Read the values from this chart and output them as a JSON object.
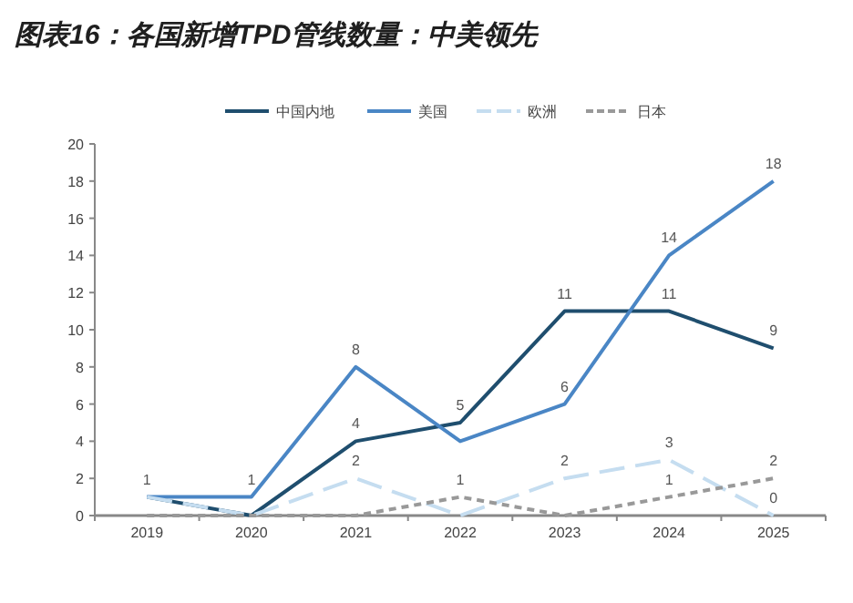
{
  "chart_data": {
    "type": "line",
    "title": "图表16：各国新增TPD管线数量：中美领先",
    "categories": [
      "2019",
      "2020",
      "2021",
      "2022",
      "2023",
      "2024",
      "2025"
    ],
    "series": [
      {
        "name": "中国内地",
        "color": "#1f4e6e",
        "line_style": "solid",
        "values": [
          1,
          0,
          4,
          5,
          11,
          11,
          9
        ],
        "value_labels": [
          "1",
          null,
          "4",
          "5",
          "11",
          "11",
          "9"
        ]
      },
      {
        "name": "美国",
        "color": "#4a86c5",
        "line_style": "solid",
        "values": [
          1,
          1,
          8,
          4,
          6,
          14,
          18
        ],
        "value_labels": [
          null,
          "1",
          "8",
          null,
          "6",
          "14",
          "18"
        ]
      },
      {
        "name": "欧洲",
        "color": "#c5ddf0",
        "line_style": "dashed",
        "values": [
          1,
          0,
          2,
          0,
          2,
          3,
          0
        ],
        "value_labels": [
          null,
          null,
          "2",
          null,
          "2",
          "3",
          "0"
        ]
      },
      {
        "name": "日本",
        "color": "#999999",
        "line_style": "dotted",
        "values": [
          0,
          0,
          0,
          1,
          0,
          1,
          2
        ],
        "value_labels": [
          null,
          null,
          null,
          "1",
          null,
          "1",
          "2"
        ]
      }
    ],
    "ylim": [
      0,
      20
    ],
    "yticks": [
      0,
      2,
      4,
      6,
      8,
      10,
      12,
      14,
      16,
      18,
      20
    ],
    "grid": false,
    "legend": "top",
    "marker": "none"
  }
}
